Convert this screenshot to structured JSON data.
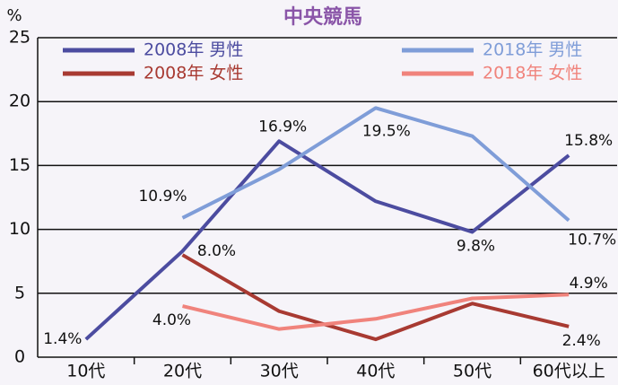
{
  "chart_data": {
    "type": "line",
    "title": "中央競馬",
    "y_unit": "%",
    "categories": [
      "10代",
      "20代",
      "30代",
      "40代",
      "50代",
      "60代以上"
    ],
    "ylim": [
      0,
      25
    ],
    "yticks": [
      0,
      5,
      10,
      15,
      20,
      25
    ],
    "grid": true,
    "series": [
      {
        "name": "2008年 男性",
        "color": "#4c4ca0",
        "values": [
          1.4,
          8.3,
          16.9,
          12.2,
          9.8,
          15.8
        ],
        "value_labels": [
          "1.4%",
          null,
          "16.9%",
          null,
          "9.8%",
          "15.8%"
        ]
      },
      {
        "name": "2018年 男性",
        "color": "#7f9dd8",
        "values": [
          null,
          10.9,
          14.7,
          19.5,
          17.3,
          10.7
        ],
        "value_labels": [
          null,
          "10.9%",
          null,
          "19.5%",
          null,
          "10.7%"
        ]
      },
      {
        "name": "2008年 女性",
        "color": "#a83a32",
        "values": [
          null,
          8.0,
          3.6,
          1.4,
          4.2,
          2.4
        ],
        "value_labels": [
          null,
          "8.0%",
          null,
          null,
          null,
          "2.4%"
        ]
      },
      {
        "name": "2018年 女性",
        "color": "#f0837c",
        "values": [
          null,
          4.0,
          2.2,
          3.0,
          4.6,
          4.9
        ],
        "value_labels": [
          null,
          "4.0%",
          null,
          null,
          null,
          "4.9%"
        ]
      }
    ]
  }
}
